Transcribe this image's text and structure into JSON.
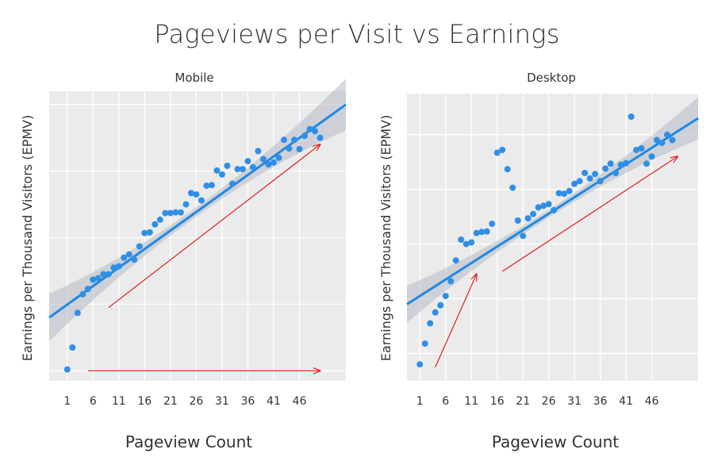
{
  "figure": {
    "title": "Pageviews per Visit vs Earnings"
  },
  "colors": {
    "point": "#2f8fe6",
    "fit": "#1e88e5",
    "band": "#b4bac4",
    "panel_bg": "#ebebeb",
    "grid": "#ffffff",
    "arrow": "#e02020"
  },
  "chart_data": [
    {
      "type": "scatter",
      "title": "Mobile",
      "xlabel": "Pageview Count",
      "ylabel": "Earnings per Thousand Visitors (EPMV)",
      "xlim": [
        -2.5,
        55
      ],
      "ylim": [
        -0.15,
        4.2
      ],
      "xticks": [
        1,
        6,
        11,
        16,
        21,
        26,
        31,
        36,
        41,
        46
      ],
      "yticks": [
        0,
        1,
        2,
        3,
        4
      ],
      "grid": true,
      "y_tick_labels_shown": false,
      "fit_line": {
        "x": [
          -2.5,
          55
        ],
        "y": [
          0.8,
          4.0
        ]
      },
      "x": [
        1,
        2,
        3,
        4,
        5,
        6,
        7,
        8,
        9,
        10,
        11,
        12,
        13,
        14,
        15,
        16,
        17,
        18,
        19,
        20,
        21,
        22,
        23,
        24,
        25,
        26,
        27,
        28,
        29,
        30,
        31,
        32,
        33,
        34,
        35,
        36,
        37,
        38,
        39,
        40,
        41,
        42,
        43,
        44,
        45,
        46,
        47,
        48,
        49,
        50
      ],
      "y": [
        0.02,
        0.35,
        0.87,
        1.15,
        1.23,
        1.37,
        1.39,
        1.45,
        1.45,
        1.55,
        1.57,
        1.7,
        1.75,
        1.67,
        1.87,
        2.07,
        2.08,
        2.2,
        2.27,
        2.37,
        2.37,
        2.38,
        2.38,
        2.5,
        2.67,
        2.65,
        2.56,
        2.78,
        2.79,
        3.01,
        2.95,
        3.08,
        2.81,
        3.03,
        3.03,
        3.15,
        3.06,
        3.3,
        3.18,
        3.1,
        3.13,
        3.2,
        3.47,
        3.34,
        3.47,
        3.33,
        3.53,
        3.63,
        3.6,
        3.5
      ],
      "arrows": [
        {
          "from": [
            5,
            0.0
          ],
          "to": [
            50,
            0.0
          ]
        },
        {
          "from": [
            9,
            0.95
          ],
          "to": [
            50,
            3.4
          ]
        }
      ]
    },
    {
      "type": "scatter",
      "title": "Desktop",
      "xlabel": "Pageview Count",
      "ylabel": "Earnings per Thousand Visitors (EPMV)",
      "xlim": [
        -1.5,
        55
      ],
      "ylim": [
        -0.25,
        5.0
      ],
      "xticks": [
        1,
        6,
        11,
        16,
        21,
        26,
        31,
        36,
        41,
        46
      ],
      "yticks": [
        0.25,
        1.25,
        2.25,
        3.25,
        4.25
      ],
      "grid": true,
      "y_tick_labels_shown": false,
      "fit_line": {
        "x": [
          -1.5,
          55
        ],
        "y": [
          1.15,
          4.55
        ]
      },
      "x": [
        1,
        2,
        3,
        4,
        5,
        6,
        7,
        8,
        9,
        10,
        11,
        12,
        13,
        14,
        15,
        16,
        17,
        18,
        19,
        20,
        21,
        22,
        23,
        24,
        25,
        26,
        27,
        28,
        29,
        30,
        31,
        32,
        33,
        34,
        35,
        36,
        37,
        38,
        39,
        40,
        41,
        42,
        43,
        44,
        45,
        46,
        47,
        48,
        49,
        50
      ],
      "y": [
        0.05,
        0.43,
        0.8,
        1.0,
        1.13,
        1.3,
        1.57,
        1.95,
        2.33,
        2.25,
        2.28,
        2.45,
        2.47,
        2.48,
        2.62,
        3.92,
        3.97,
        3.62,
        3.28,
        2.68,
        2.4,
        2.72,
        2.8,
        2.92,
        2.95,
        2.98,
        2.87,
        3.18,
        3.17,
        3.22,
        3.35,
        3.4,
        3.55,
        3.45,
        3.53,
        3.4,
        3.63,
        3.72,
        3.55,
        3.7,
        3.73,
        4.58,
        3.97,
        4.0,
        3.72,
        3.85,
        4.15,
        4.1,
        4.25,
        4.15
      ],
      "arrows": [
        {
          "from": [
            4,
            0.0
          ],
          "to": [
            12,
            1.7
          ]
        },
        {
          "from": [
            17,
            1.75
          ],
          "to": [
            51,
            3.85
          ]
        }
      ]
    }
  ]
}
